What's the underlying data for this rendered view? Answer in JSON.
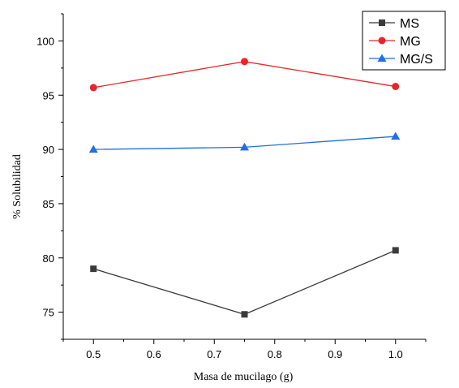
{
  "chart_data": {
    "type": "line",
    "title": "",
    "xlabel": "Masa de mucilago (g)",
    "ylabel": "% Solubilidad",
    "x": [
      0.5,
      0.75,
      1.0
    ],
    "xlim": [
      0.45,
      1.05
    ],
    "ylim": [
      72.5,
      102.5
    ],
    "xticks": [
      0.5,
      0.6,
      0.7,
      0.8,
      0.9,
      1.0
    ],
    "xtick_labels": [
      "0.5",
      "0.6",
      "0.7",
      "0.8",
      "0.9",
      "1.0"
    ],
    "yticks": [
      75,
      80,
      85,
      90,
      95,
      100
    ],
    "ytick_labels": [
      "75",
      "80",
      "85",
      "90",
      "95",
      "100"
    ],
    "grid": false,
    "legend_position": "top-right",
    "series": [
      {
        "name": "MS",
        "values": [
          79.0,
          74.8,
          80.7
        ],
        "color": "#3a3a3a",
        "marker": "square"
      },
      {
        "name": "MG",
        "values": [
          95.7,
          98.1,
          95.8
        ],
        "color": "#e8262a",
        "marker": "circle"
      },
      {
        "name": "MG/S",
        "values": [
          90.0,
          90.2,
          91.2
        ],
        "color": "#1f6fe0",
        "marker": "triangle"
      }
    ]
  }
}
